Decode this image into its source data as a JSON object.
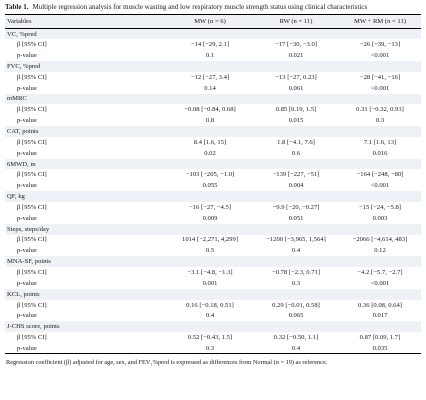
{
  "table": {
    "label": "Table 1.",
    "caption": "Multiple regression analysis for muscle wasting and low respiratory muscle strength status using clinical characteristics",
    "headers": [
      "Variables",
      "MW (n = 6)",
      "RW (n = 11)",
      "MW + RM (n = 11)"
    ],
    "sections": [
      {
        "title": "VC, %pred",
        "rows": [
          {
            "label": "β [95% CI]",
            "values": [
              "−14 [−29, 2.1]",
              "−17 [−30, −3.0]",
              "−26 [−39, −13]"
            ]
          },
          {
            "label": "p-value",
            "values": [
              "0.1",
              "0.021",
              "<0.001"
            ]
          }
        ]
      },
      {
        "title": "FVC, %pred",
        "rows": [
          {
            "label": "β [95% CI]",
            "values": [
              "−12 [−27, 3.4]",
              "−13 [−27, 0.23]",
              "−28 [−41, −16]"
            ]
          },
          {
            "label": "p-value",
            "values": [
              "0.14",
              "0.061",
              "<0.001"
            ]
          }
        ]
      },
      {
        "title": "mMRC",
        "rows": [
          {
            "label": "β [95% CI]",
            "values": [
              "−0.08 [−0.84, 0.68]",
              "0.85 [0.19, 1.5]",
              "0.31 [−0.32, 0.93]"
            ]
          },
          {
            "label": "p-value",
            "values": [
              "0.8",
              "0.015",
              "0.3"
            ]
          }
        ]
      },
      {
        "title": "CAT, points",
        "rows": [
          {
            "label": "β [95% CI]",
            "values": [
              "8.4 [1.6, 15]",
              "1.8 [−4.1, 7.6]",
              "7.1 [1.6, 13]"
            ]
          },
          {
            "label": "p-value",
            "values": [
              "0.02",
              "0.6",
              "0.016"
            ]
          }
        ]
      },
      {
        "title": "6MWD, m",
        "rows": [
          {
            "label": "β [95% CI]",
            "values": [
              "−103 [−205, −1.0]",
              "−139 [−227, −51]",
              "−164 [−248, −80]"
            ]
          },
          {
            "label": "p-value",
            "values": [
              "0.055",
              "0.004",
              "<0.001"
            ]
          }
        ]
      },
      {
        "title": "QF, kg",
        "rows": [
          {
            "label": "β [95% CI]",
            "values": [
              "−16 [−27, −4.5]",
              "−9.9 [−20, −0.27]",
              "−15 [−24, −5.8]"
            ]
          },
          {
            "label": "p-value",
            "values": [
              "0.009",
              "0.051",
              "0.003"
            ]
          }
        ]
      },
      {
        "title": "Steps, steps/day",
        "rows": [
          {
            "label": "β [95% CI]",
            "values": [
              "1014 [−2,271, 4,299]",
              "−1200 [−3,965, 1,564]",
              "−2066 [−4,614, 483]"
            ]
          },
          {
            "label": "p-value",
            "values": [
              "0.5",
              "0.4",
              "0.12"
            ]
          }
        ]
      },
      {
        "title": "MNA-SF, points",
        "rows": [
          {
            "label": "β [95% CI]",
            "values": [
              "−3.1 [−4.8, −1.3]",
              "−0.78 [−2.3, 0.71]",
              "−4.2 [−5.7, −2.7]"
            ]
          },
          {
            "label": "p-value",
            "values": [
              "0.001",
              "0.3",
              "<0.001"
            ]
          }
        ]
      },
      {
        "title": "KCL, points",
        "rows": [
          {
            "label": "β [95% CI]",
            "values": [
              "0.16 [−0.18, 0.51]",
              "0.29 [−0.01, 0.58]",
              "0.36 [0.08, 0.64]"
            ]
          },
          {
            "label": "p-value",
            "values": [
              "0.4",
              "0.065",
              "0.017"
            ]
          }
        ]
      },
      {
        "title": "J-CHS score, points",
        "rows": [
          {
            "label": "β [95% CI]",
            "values": [
              "0.52 [−0.43, 1.5]",
              "0.32 [−0.50, 1.1]",
              "0.87 [0.09, 1.7]"
            ]
          },
          {
            "label": "p-value",
            "values": [
              "0.3",
              "0.4",
              "0.035"
            ]
          }
        ]
      }
    ],
    "footnote": "Regression coefficient (β) adjusted for age, sex, and FEV₁%pred is expressed as differences from Normal (n = 19) as reference."
  }
}
